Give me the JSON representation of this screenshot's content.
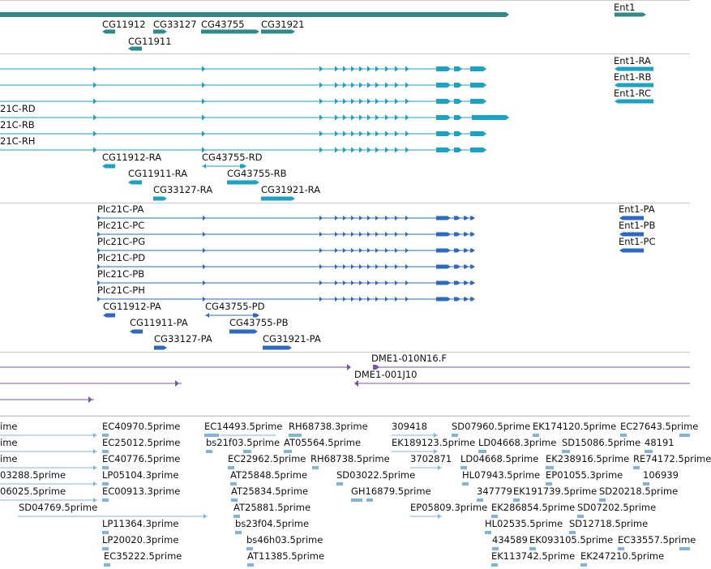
{
  "colors": {
    "gene": "#2e8b8b",
    "transcript": "#1aa3c4",
    "protein": "#2d68c4",
    "clone": "#7b55a8",
    "est": "#7fb4dc",
    "separator": "#c8c8c8"
  },
  "gene_track": {
    "labels": [
      "Ent1",
      "CG11912",
      "CG33127",
      "CG43755",
      "CG31921",
      "CG11911"
    ]
  },
  "transcript_track": {
    "labels": [
      "Ent1-RA",
      "Ent1-RB",
      "Ent1-RC",
      "21C-RD",
      "21C-RB",
      "21C-RH",
      "CG11912-RA",
      "CG43755-RD",
      "CG11911-RA",
      "CG43755-RB",
      "CG33127-RA",
      "CG31921-RA"
    ]
  },
  "protein_track": {
    "labels": [
      "Plc21C-PA",
      "Plc21C-PC",
      "Plc21C-PG",
      "Plc21C-PD",
      "Plc21C-PB",
      "Plc21C-PH",
      "Ent1-PA",
      "Ent1-PB",
      "Ent1-PC",
      "CG11912-PA",
      "CG43755-PD",
      "CG11911-PA",
      "CG43755-PB",
      "CG33127-PA",
      "CG31921-PA"
    ]
  },
  "clone_track": {
    "labels": [
      "DME1-010N16.F",
      "DME1-001J10"
    ]
  },
  "est_track": {
    "labels": [
      "ime",
      "ime",
      "ime",
      "03288.5prime",
      "06025.5prime",
      "SD04769.5prime",
      "EC40970.5prime",
      "EC25012.5prime",
      "EC40776.5prime",
      "LP05104.3prime",
      "EC00913.3prime",
      "LP11364.3prime",
      "LP20020.3prime",
      "EC35222.5prime",
      "EC14493.5prime",
      "RH68738.3prime",
      "bs21f03.5prime",
      "AT05564.5prime",
      "EC22962.5prime",
      "RH68738.5prime",
      "AT25848.5prime",
      "SD03022.5prime",
      "AT25834.5prime",
      "GH16879.5prime",
      "AT25881.5prime",
      "bs23f04.5prime",
      "bs46h03.5prime",
      "AT11385.5prime",
      "309418",
      "EK189123.5prime",
      "3702871",
      "EP05809.3prime",
      "SD07960.5prime",
      "LD04668.3prime",
      "LD04668.5prime",
      "HL07943.5prime",
      "347779",
      "EK286854.5prime",
      "HL02535.5prime",
      "434589",
      "EK113742.5prime",
      "EK174120.5prime",
      "SD15086.5prime",
      "EK238916.5prime",
      "EP01055.3prime",
      "EK191739.5prime",
      "SD20218.5prime",
      "SD07202.5prime",
      "SD12718.5prime",
      "EK093105.5prime",
      "EK247210.5prime",
      "EC27643.5prime",
      "48191",
      "RE74172.5prime",
      "106939",
      "EC33557.5prime"
    ]
  }
}
